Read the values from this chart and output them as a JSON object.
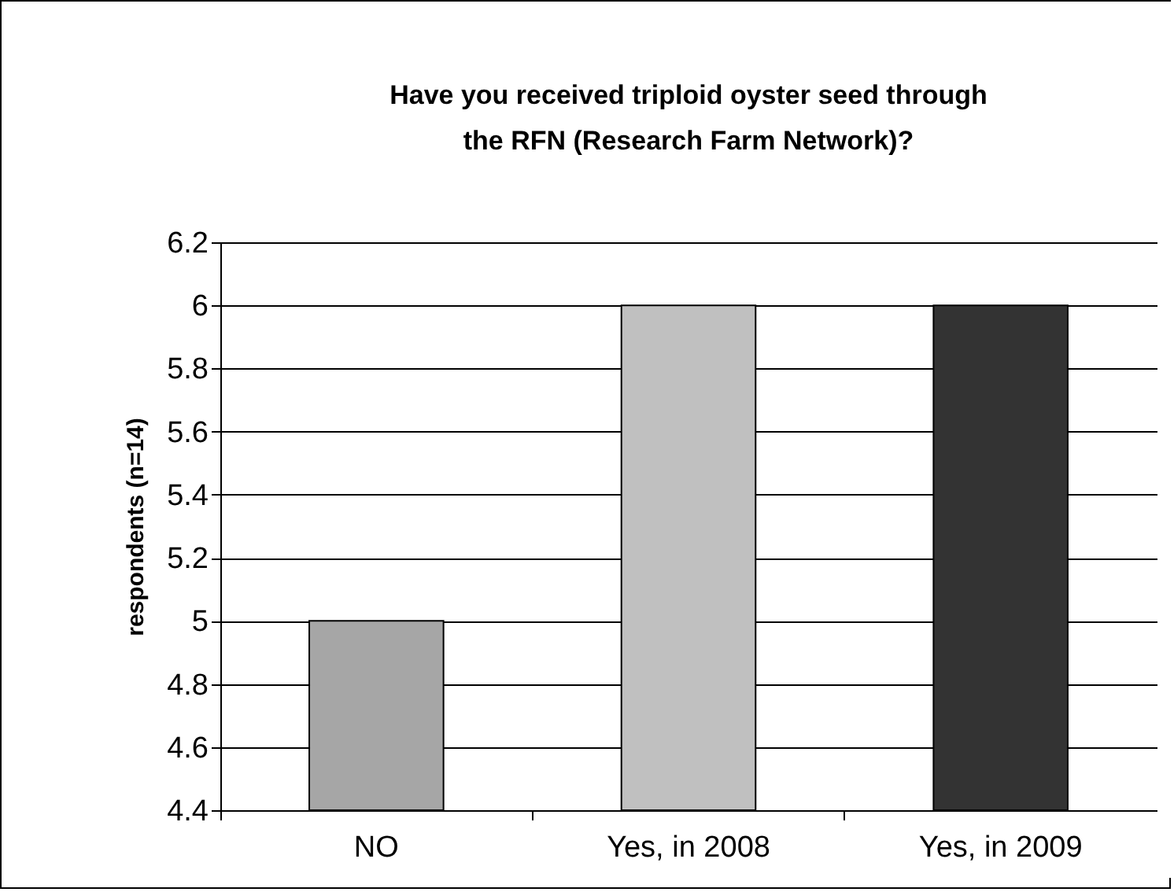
{
  "chart_data": {
    "type": "bar",
    "title": "Have you received triploid oyster seed through the RFN (Research Farm Network)?",
    "ylabel": "respondents (n=14)",
    "categories": [
      "NO",
      "Yes, in 2008",
      "Yes, in 2009"
    ],
    "values": [
      5,
      6,
      6
    ],
    "colors": [
      "#a6a6a6",
      "#c0c0c0",
      "#333333"
    ],
    "ylim": [
      4.4,
      6.2
    ],
    "yticks": [
      4.4,
      4.6,
      4.8,
      5,
      5.2,
      5.4,
      5.6,
      5.8,
      6,
      6.2
    ],
    "grid": "y"
  }
}
